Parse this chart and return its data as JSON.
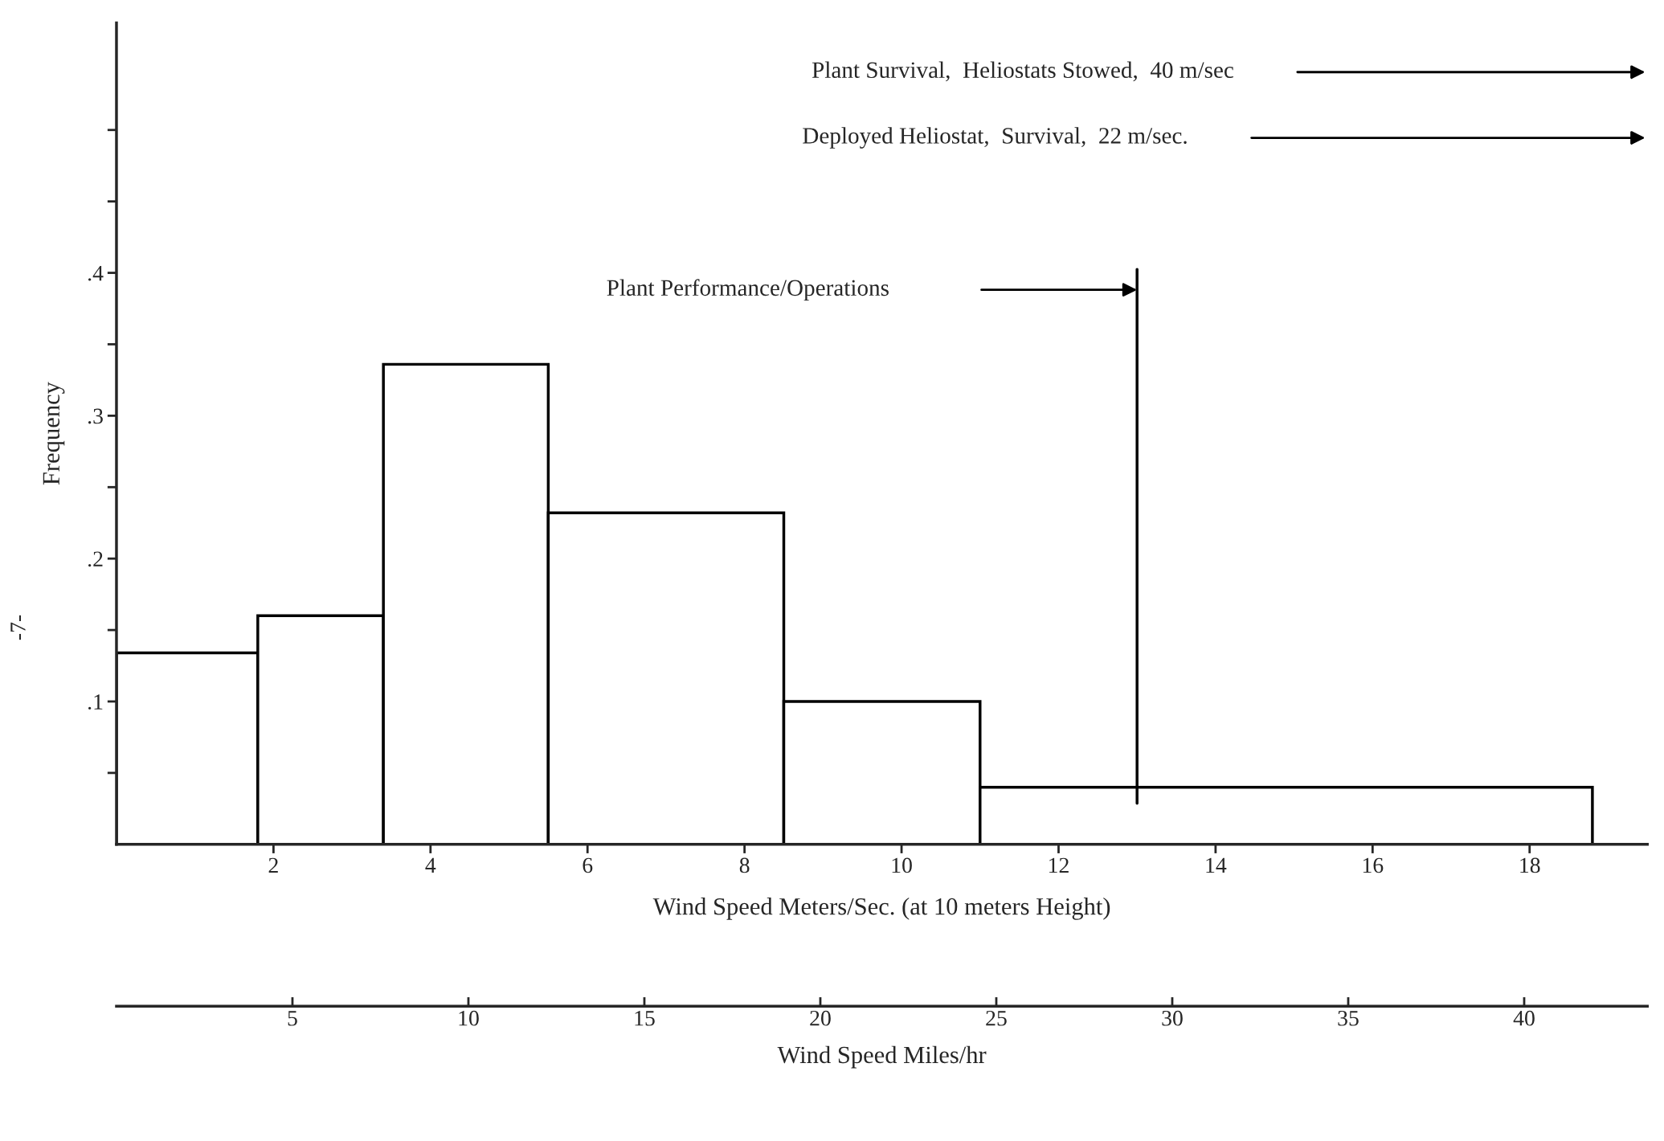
{
  "chart_data": {
    "type": "histogram",
    "ylabel": "Frequency",
    "xlabel": "Wind Speed Meters/Sec. (at 10 meters Height)",
    "x2label": "Wind Speed Miles/hr",
    "bins": [
      0,
      1.8,
      3.4,
      5.5,
      8.5,
      11.0,
      18.8
    ],
    "values": [
      0.134,
      0.16,
      0.336,
      0.232,
      0.1,
      0.04
    ],
    "color": "#ffffff",
    "xlim": [
      0,
      19.5
    ],
    "xticks": [
      2,
      4,
      6,
      8,
      10,
      12,
      14,
      16,
      18
    ],
    "x2lim": [
      0,
      43.5
    ],
    "x2ticks": [
      5,
      10,
      15,
      20,
      25,
      30,
      35,
      40
    ],
    "ylim": [
      0,
      0.575
    ],
    "yticks": [
      {
        "value": 0.05,
        "label": null
      },
      {
        "value": 0.1,
        "label": ".1"
      },
      {
        "value": 0.15,
        "label": null
      },
      {
        "value": 0.2,
        "label": ".2"
      },
      {
        "value": 0.25,
        "label": null
      },
      {
        "value": 0.3,
        "label": ".3"
      },
      {
        "value": 0.35,
        "label": null
      },
      {
        "value": 0.4,
        "label": ".4"
      },
      {
        "value": 0.45,
        "label": null
      },
      {
        "value": 0.5,
        "label": null
      }
    ],
    "ref_lines": [
      {
        "axis": "x",
        "value": 13,
        "label": "Plant Performance/Operations",
        "color": "#000000"
      }
    ],
    "annotations": [
      "Plant Survival,  Heliostats Stowed,  40 m/sec",
      "Deployed Heliostat,  Survival,  22 m/sec.",
      "-7-"
    ],
    "grid": false
  }
}
